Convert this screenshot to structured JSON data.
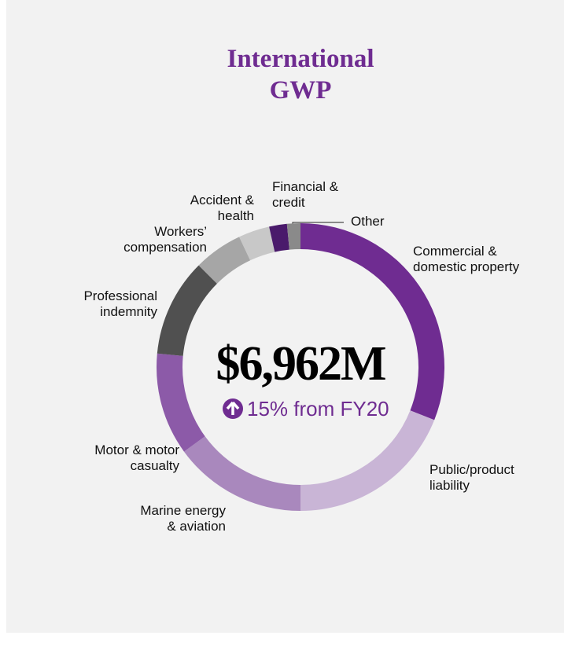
{
  "chart_data": {
    "type": "donut",
    "title": "International GWP",
    "total": "$6,962M",
    "change": "15% from FY20",
    "categories": [
      "Commercial &\ndomestic property",
      "Public/product\nliability",
      "Marine energy\n& aviation",
      "Motor & motor\ncasualty",
      "Professional\nindemnity",
      "Workers’\ncompensation",
      "Accident &\nhealth",
      "Financial &\ncredit",
      "Other"
    ],
    "values": [
      31,
      19,
      15,
      11.5,
      11,
      5.5,
      3.5,
      2,
      1.5
    ],
    "colors": [
      "#6f2c91",
      "#c9b5d6",
      "#a988bd",
      "#8c5aa8",
      "#505050",
      "#a6a6a6",
      "#c8c8c8",
      "#4a1a6b",
      "#8a8a8a"
    ]
  }
}
